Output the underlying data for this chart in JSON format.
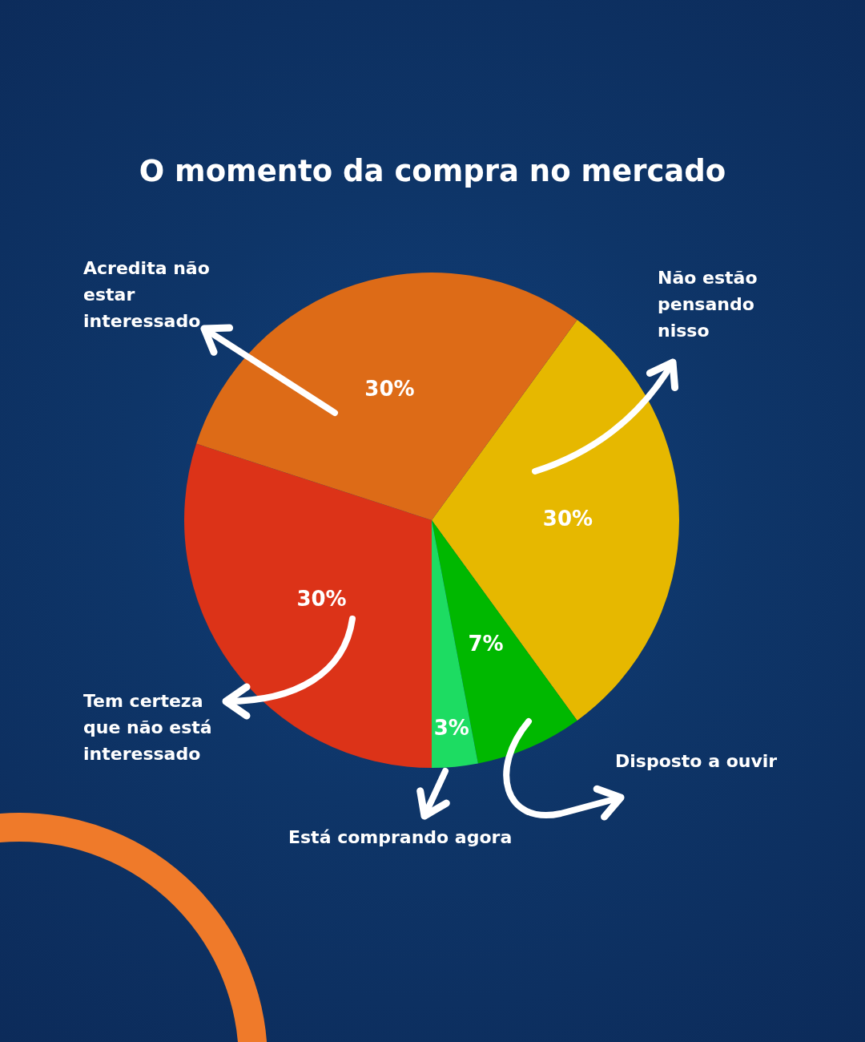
{
  "chart_data": {
    "type": "pie",
    "title": "O momento da compra no mercado",
    "categories": [
      "Não estão pensando nisso",
      "Disposto a ouvir",
      "Está comprando agora",
      "Tem certeza que não está interessado",
      "Acredita não estar interessado"
    ],
    "values": [
      30,
      7,
      3,
      30,
      30
    ],
    "value_labels": [
      "30%",
      "7%",
      "3%",
      "30%",
      "30%"
    ],
    "colors": [
      "#e6b800",
      "#00b800",
      "#1ddc62",
      "#dc3318",
      "#dd6b17"
    ],
    "legend": false
  }
}
